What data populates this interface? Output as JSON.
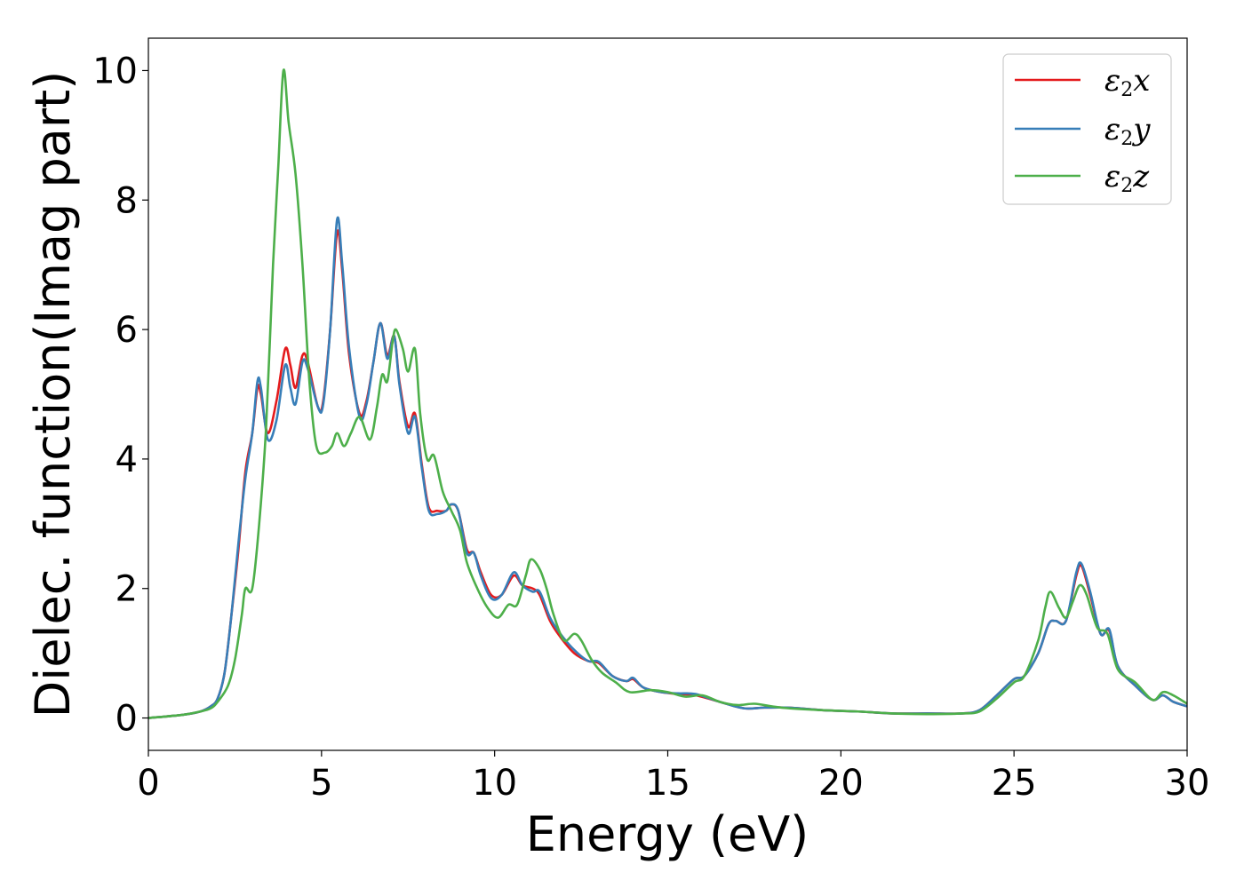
{
  "chart_data": {
    "type": "line",
    "xlabel": "Energy (eV)",
    "ylabel": "Dielec. function(Imag part)",
    "xlim": [
      0,
      30
    ],
    "ylim": [
      -0.5,
      10.5
    ],
    "xticks": [
      0,
      5,
      10,
      15,
      20,
      25,
      30
    ],
    "yticks": [
      0,
      2,
      4,
      6,
      8,
      10
    ],
    "grid": false,
    "legend": "top-right",
    "series": [
      {
        "name": "ε2x",
        "symbol": "ε",
        "sub": "2",
        "axis": "x",
        "color": "#e41a1c",
        "points": [
          [
            0,
            0
          ],
          [
            1,
            0.05
          ],
          [
            1.5,
            0.1
          ],
          [
            1.8,
            0.18
          ],
          [
            2,
            0.3
          ],
          [
            2.2,
            0.7
          ],
          [
            2.4,
            1.6
          ],
          [
            2.6,
            2.6
          ],
          [
            2.8,
            3.8
          ],
          [
            3,
            4.4
          ],
          [
            3.15,
            5.1
          ],
          [
            3.25,
            5.0
          ],
          [
            3.45,
            4.4
          ],
          [
            3.7,
            4.9
          ],
          [
            3.95,
            5.7
          ],
          [
            4.1,
            5.45
          ],
          [
            4.25,
            5.1
          ],
          [
            4.45,
            5.6
          ],
          [
            4.6,
            5.5
          ],
          [
            4.9,
            4.8
          ],
          [
            5.05,
            4.9
          ],
          [
            5.25,
            6.0
          ],
          [
            5.45,
            7.5
          ],
          [
            5.6,
            6.9
          ],
          [
            5.8,
            5.6
          ],
          [
            6.1,
            4.7
          ],
          [
            6.3,
            4.9
          ],
          [
            6.5,
            5.5
          ],
          [
            6.7,
            6.1
          ],
          [
            6.9,
            5.6
          ],
          [
            7.1,
            5.9
          ],
          [
            7.25,
            5.2
          ],
          [
            7.5,
            4.5
          ],
          [
            7.7,
            4.7
          ],
          [
            7.9,
            3.9
          ],
          [
            8.1,
            3.25
          ],
          [
            8.35,
            3.2
          ],
          [
            8.6,
            3.2
          ],
          [
            8.75,
            3.3
          ],
          [
            8.95,
            3.2
          ],
          [
            9.2,
            2.6
          ],
          [
            9.4,
            2.55
          ],
          [
            9.6,
            2.25
          ],
          [
            9.9,
            1.9
          ],
          [
            10.2,
            1.9
          ],
          [
            10.55,
            2.2
          ],
          [
            10.8,
            2.05
          ],
          [
            11.1,
            2.0
          ],
          [
            11.3,
            1.9
          ],
          [
            11.6,
            1.5
          ],
          [
            11.9,
            1.25
          ],
          [
            12.3,
            1.0
          ],
          [
            12.7,
            0.88
          ],
          [
            13,
            0.85
          ],
          [
            13.4,
            0.65
          ],
          [
            13.8,
            0.57
          ],
          [
            14,
            0.6
          ],
          [
            14.3,
            0.47
          ],
          [
            14.8,
            0.4
          ],
          [
            15.3,
            0.37
          ],
          [
            15.8,
            0.35
          ],
          [
            16.5,
            0.25
          ],
          [
            17.2,
            0.15
          ],
          [
            17.8,
            0.16
          ],
          [
            18.5,
            0.16
          ],
          [
            19.5,
            0.12
          ],
          [
            20.5,
            0.1
          ],
          [
            21.5,
            0.07
          ],
          [
            22.5,
            0.07
          ],
          [
            23.5,
            0.07
          ],
          [
            24,
            0.12
          ],
          [
            24.5,
            0.35
          ],
          [
            25,
            0.6
          ],
          [
            25.3,
            0.65
          ],
          [
            25.7,
            1.0
          ],
          [
            26,
            1.45
          ],
          [
            26.2,
            1.5
          ],
          [
            26.5,
            1.5
          ],
          [
            26.8,
            2.2
          ],
          [
            26.95,
            2.35
          ],
          [
            27.2,
            1.9
          ],
          [
            27.5,
            1.3
          ],
          [
            27.75,
            1.35
          ],
          [
            28,
            0.8
          ],
          [
            28.5,
            0.5
          ],
          [
            29,
            0.28
          ],
          [
            29.3,
            0.35
          ],
          [
            29.6,
            0.25
          ],
          [
            30,
            0.18
          ]
        ]
      },
      {
        "name": "ε2y",
        "symbol": "ε",
        "sub": "2",
        "axis": "y",
        "color": "#377eb8",
        "points": [
          [
            0,
            0
          ],
          [
            1,
            0.05
          ],
          [
            1.5,
            0.1
          ],
          [
            1.8,
            0.18
          ],
          [
            2,
            0.3
          ],
          [
            2.2,
            0.7
          ],
          [
            2.4,
            1.6
          ],
          [
            2.6,
            2.7
          ],
          [
            2.8,
            3.7
          ],
          [
            3,
            4.4
          ],
          [
            3.15,
            5.2
          ],
          [
            3.25,
            5.1
          ],
          [
            3.45,
            4.3
          ],
          [
            3.7,
            4.6
          ],
          [
            3.95,
            5.45
          ],
          [
            4.1,
            5.1
          ],
          [
            4.25,
            4.85
          ],
          [
            4.45,
            5.5
          ],
          [
            4.6,
            5.4
          ],
          [
            4.9,
            4.8
          ],
          [
            5.05,
            4.85
          ],
          [
            5.25,
            6.0
          ],
          [
            5.45,
            7.7
          ],
          [
            5.6,
            7.0
          ],
          [
            5.8,
            5.7
          ],
          [
            6.1,
            4.65
          ],
          [
            6.3,
            4.85
          ],
          [
            6.5,
            5.5
          ],
          [
            6.7,
            6.1
          ],
          [
            6.9,
            5.55
          ],
          [
            7.1,
            5.9
          ],
          [
            7.25,
            5.15
          ],
          [
            7.5,
            4.4
          ],
          [
            7.7,
            4.65
          ],
          [
            7.9,
            3.85
          ],
          [
            8.1,
            3.2
          ],
          [
            8.35,
            3.15
          ],
          [
            8.6,
            3.2
          ],
          [
            8.75,
            3.3
          ],
          [
            8.95,
            3.2
          ],
          [
            9.2,
            2.55
          ],
          [
            9.4,
            2.55
          ],
          [
            9.6,
            2.2
          ],
          [
            9.9,
            1.85
          ],
          [
            10.2,
            1.9
          ],
          [
            10.55,
            2.25
          ],
          [
            10.8,
            2.05
          ],
          [
            11.1,
            1.95
          ],
          [
            11.3,
            1.95
          ],
          [
            11.6,
            1.55
          ],
          [
            11.9,
            1.3
          ],
          [
            12.3,
            1.05
          ],
          [
            12.7,
            0.88
          ],
          [
            13,
            0.87
          ],
          [
            13.4,
            0.65
          ],
          [
            13.8,
            0.57
          ],
          [
            14,
            0.62
          ],
          [
            14.3,
            0.47
          ],
          [
            14.8,
            0.4
          ],
          [
            15.3,
            0.38
          ],
          [
            15.8,
            0.37
          ],
          [
            16.5,
            0.25
          ],
          [
            17.2,
            0.15
          ],
          [
            17.8,
            0.16
          ],
          [
            18.5,
            0.16
          ],
          [
            19.5,
            0.12
          ],
          [
            20.5,
            0.1
          ],
          [
            21.5,
            0.07
          ],
          [
            22.5,
            0.07
          ],
          [
            23.5,
            0.07
          ],
          [
            24,
            0.12
          ],
          [
            24.5,
            0.35
          ],
          [
            25,
            0.6
          ],
          [
            25.3,
            0.65
          ],
          [
            25.7,
            1.0
          ],
          [
            26,
            1.45
          ],
          [
            26.2,
            1.5
          ],
          [
            26.5,
            1.5
          ],
          [
            26.8,
            2.25
          ],
          [
            26.95,
            2.38
          ],
          [
            27.2,
            1.95
          ],
          [
            27.5,
            1.3
          ],
          [
            27.75,
            1.37
          ],
          [
            28,
            0.8
          ],
          [
            28.5,
            0.5
          ],
          [
            29,
            0.28
          ],
          [
            29.3,
            0.35
          ],
          [
            29.6,
            0.25
          ],
          [
            30,
            0.18
          ]
        ]
      },
      {
        "name": "ε2z",
        "symbol": "ε",
        "sub": "2",
        "axis": "z",
        "color": "#4daf4a",
        "points": [
          [
            0,
            0
          ],
          [
            1,
            0.05
          ],
          [
            1.5,
            0.1
          ],
          [
            1.8,
            0.15
          ],
          [
            2,
            0.25
          ],
          [
            2.3,
            0.5
          ],
          [
            2.5,
            0.9
          ],
          [
            2.7,
            1.6
          ],
          [
            2.8,
            2.0
          ],
          [
            3,
            2.0
          ],
          [
            3.2,
            3.0
          ],
          [
            3.4,
            4.5
          ],
          [
            3.6,
            7.0
          ],
          [
            3.75,
            8.5
          ],
          [
            3.9,
            10.0
          ],
          [
            4.05,
            9.2
          ],
          [
            4.25,
            8.4
          ],
          [
            4.45,
            7.0
          ],
          [
            4.65,
            5.2
          ],
          [
            4.85,
            4.2
          ],
          [
            5.1,
            4.1
          ],
          [
            5.3,
            4.2
          ],
          [
            5.45,
            4.4
          ],
          [
            5.65,
            4.2
          ],
          [
            5.85,
            4.4
          ],
          [
            6.1,
            4.65
          ],
          [
            6.4,
            4.3
          ],
          [
            6.6,
            4.8
          ],
          [
            6.75,
            5.3
          ],
          [
            6.9,
            5.2
          ],
          [
            7.05,
            5.8
          ],
          [
            7.15,
            6.0
          ],
          [
            7.35,
            5.7
          ],
          [
            7.5,
            5.35
          ],
          [
            7.7,
            5.7
          ],
          [
            7.85,
            4.7
          ],
          [
            8.05,
            4.0
          ],
          [
            8.25,
            4.05
          ],
          [
            8.5,
            3.5
          ],
          [
            8.75,
            3.2
          ],
          [
            9.0,
            2.9
          ],
          [
            9.2,
            2.4
          ],
          [
            9.5,
            2.0
          ],
          [
            9.8,
            1.7
          ],
          [
            10.1,
            1.55
          ],
          [
            10.4,
            1.75
          ],
          [
            10.65,
            1.75
          ],
          [
            10.9,
            2.2
          ],
          [
            11.05,
            2.45
          ],
          [
            11.3,
            2.3
          ],
          [
            11.5,
            2.0
          ],
          [
            11.7,
            1.6
          ],
          [
            12,
            1.2
          ],
          [
            12.3,
            1.3
          ],
          [
            12.5,
            1.2
          ],
          [
            12.8,
            0.9
          ],
          [
            13.1,
            0.7
          ],
          [
            13.5,
            0.55
          ],
          [
            13.9,
            0.4
          ],
          [
            14.5,
            0.43
          ],
          [
            15,
            0.4
          ],
          [
            15.5,
            0.33
          ],
          [
            16,
            0.35
          ],
          [
            16.5,
            0.25
          ],
          [
            17,
            0.2
          ],
          [
            17.5,
            0.22
          ],
          [
            18,
            0.18
          ],
          [
            18.5,
            0.15
          ],
          [
            19.5,
            0.12
          ],
          [
            20.5,
            0.1
          ],
          [
            21.5,
            0.07
          ],
          [
            22.5,
            0.06
          ],
          [
            23.5,
            0.07
          ],
          [
            24,
            0.1
          ],
          [
            24.5,
            0.3
          ],
          [
            25,
            0.55
          ],
          [
            25.3,
            0.65
          ],
          [
            25.7,
            1.2
          ],
          [
            25.9,
            1.7
          ],
          [
            26.05,
            1.95
          ],
          [
            26.3,
            1.7
          ],
          [
            26.5,
            1.55
          ],
          [
            26.7,
            1.8
          ],
          [
            26.9,
            2.05
          ],
          [
            27.1,
            1.9
          ],
          [
            27.4,
            1.4
          ],
          [
            27.7,
            1.3
          ],
          [
            28,
            0.75
          ],
          [
            28.5,
            0.55
          ],
          [
            29,
            0.28
          ],
          [
            29.3,
            0.4
          ],
          [
            29.6,
            0.35
          ],
          [
            30,
            0.22
          ]
        ]
      }
    ]
  }
}
